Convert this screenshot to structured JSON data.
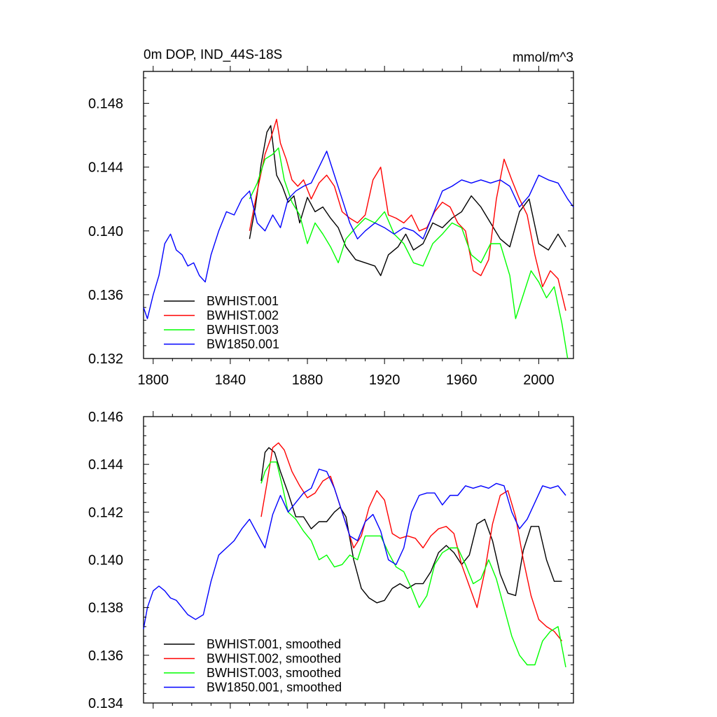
{
  "chart_data": [
    {
      "type": "line",
      "title": "0m DOP, IND_44S-18S",
      "units": "mmol/m^3",
      "xlim": [
        1795,
        2018
      ],
      "ylim": [
        0.132,
        0.15
      ],
      "xticks": [
        1800,
        1840,
        1880,
        1920,
        1960,
        2000
      ],
      "yticks": [
        0.132,
        0.136,
        0.14,
        0.144,
        0.148
      ],
      "ytick_labels": [
        "0.132",
        "0.136",
        "0.140",
        "0.144",
        "0.148"
      ],
      "xtick_labels": [
        "1800",
        "1840",
        "1880",
        "1920",
        "1960",
        "2000"
      ],
      "legend_position": "bottom-left",
      "series": [
        {
          "name": "BWHIST.001",
          "color": "#000000",
          "x": [
            1850,
            1853,
            1856,
            1859,
            1861,
            1864,
            1867,
            1870,
            1873,
            1876,
            1880,
            1884,
            1888,
            1892,
            1896,
            1900,
            1905,
            1910,
            1915,
            1918,
            1922,
            1927,
            1931,
            1935,
            1940,
            1945,
            1950,
            1955,
            1960,
            1965,
            1970,
            1975,
            1980,
            1985,
            1990,
            1995,
            2000,
            2005,
            2010,
            2014
          ],
          "y": [
            0.1395,
            0.1415,
            0.1442,
            0.1462,
            0.1466,
            0.1435,
            0.1428,
            0.1418,
            0.1422,
            0.1405,
            0.1421,
            0.1412,
            0.1415,
            0.1408,
            0.1402,
            0.139,
            0.1382,
            0.138,
            0.1378,
            0.1372,
            0.1385,
            0.139,
            0.1398,
            0.1388,
            0.1392,
            0.1405,
            0.1402,
            0.1408,
            0.1412,
            0.1422,
            0.1415,
            0.1405,
            0.1395,
            0.139,
            0.1412,
            0.142,
            0.1392,
            0.1388,
            0.1398,
            0.139
          ]
        },
        {
          "name": "BWHIST.002",
          "color": "#ff0000",
          "x": [
            1850,
            1854,
            1858,
            1861,
            1864,
            1866,
            1869,
            1872,
            1875,
            1878,
            1882,
            1886,
            1890,
            1894,
            1898,
            1902,
            1906,
            1910,
            1914,
            1918,
            1922,
            1926,
            1930,
            1934,
            1938,
            1942,
            1946,
            1950,
            1954,
            1958,
            1962,
            1966,
            1970,
            1974,
            1978,
            1982,
            1986,
            1990,
            1994,
            1998,
            2002,
            2006,
            2010,
            2014
          ],
          "y": [
            0.14,
            0.1425,
            0.1448,
            0.1458,
            0.147,
            0.1455,
            0.1445,
            0.1432,
            0.1428,
            0.1432,
            0.142,
            0.143,
            0.1435,
            0.1428,
            0.1412,
            0.1408,
            0.1405,
            0.141,
            0.1432,
            0.144,
            0.141,
            0.1408,
            0.1405,
            0.141,
            0.14,
            0.1402,
            0.1412,
            0.1418,
            0.1415,
            0.1405,
            0.14,
            0.1375,
            0.1372,
            0.1382,
            0.142,
            0.1445,
            0.1432,
            0.142,
            0.141,
            0.1385,
            0.1365,
            0.1375,
            0.137,
            0.135
          ]
        },
        {
          "name": "BWHIST.003",
          "color": "#00ff00",
          "x": [
            1850,
            1854,
            1858,
            1862,
            1865,
            1868,
            1872,
            1876,
            1880,
            1884,
            1888,
            1892,
            1896,
            1900,
            1905,
            1910,
            1915,
            1920,
            1925,
            1930,
            1935,
            1940,
            1945,
            1950,
            1955,
            1960,
            1965,
            1970,
            1975,
            1980,
            1985,
            1988,
            1992,
            1996,
            2000,
            2004,
            2008,
            2012,
            2015
          ],
          "y": [
            0.142,
            0.143,
            0.1445,
            0.1448,
            0.1452,
            0.1432,
            0.1418,
            0.141,
            0.1392,
            0.1405,
            0.1398,
            0.139,
            0.138,
            0.1395,
            0.1402,
            0.1408,
            0.1405,
            0.1412,
            0.1398,
            0.1392,
            0.138,
            0.1378,
            0.1392,
            0.1398,
            0.1405,
            0.1402,
            0.1385,
            0.138,
            0.1392,
            0.1392,
            0.1372,
            0.1345,
            0.136,
            0.1375,
            0.1368,
            0.1358,
            0.1365,
            0.1342,
            0.132
          ]
        },
        {
          "name": "BW1850.001",
          "color": "#0000ff",
          "x": [
            1795,
            1797,
            1800,
            1803,
            1806,
            1809,
            1812,
            1815,
            1818,
            1821,
            1824,
            1827,
            1830,
            1834,
            1838,
            1842,
            1846,
            1850,
            1854,
            1858,
            1862,
            1866,
            1870,
            1874,
            1878,
            1882,
            1886,
            1890,
            1894,
            1898,
            1902,
            1906,
            1910,
            1915,
            1920,
            1925,
            1930,
            1935,
            1940,
            1945,
            1950,
            1955,
            1960,
            1965,
            1970,
            1975,
            1980,
            1985,
            1990,
            1995,
            2000,
            2005,
            2010,
            2015,
            2018
          ],
          "y": [
            0.1352,
            0.1345,
            0.136,
            0.1372,
            0.1392,
            0.1398,
            0.1388,
            0.1385,
            0.1378,
            0.138,
            0.1372,
            0.1368,
            0.1385,
            0.14,
            0.1412,
            0.141,
            0.142,
            0.1425,
            0.1405,
            0.14,
            0.141,
            0.1402,
            0.142,
            0.1425,
            0.1428,
            0.143,
            0.144,
            0.145,
            0.1435,
            0.142,
            0.1405,
            0.1395,
            0.14,
            0.1405,
            0.1402,
            0.1398,
            0.1402,
            0.14,
            0.1395,
            0.141,
            0.1425,
            0.1428,
            0.1432,
            0.143,
            0.1432,
            0.143,
            0.1432,
            0.1428,
            0.1415,
            0.1422,
            0.1435,
            0.1432,
            0.143,
            0.142,
            0.1415
          ]
        }
      ]
    },
    {
      "type": "line",
      "title": "",
      "xlim": [
        1795,
        2018
      ],
      "ylim": [
        0.134,
        0.146
      ],
      "xticks": [
        1800,
        1840,
        1880,
        1920,
        1960,
        2000
      ],
      "yticks": [
        0.134,
        0.136,
        0.138,
        0.14,
        0.142,
        0.144,
        0.146
      ],
      "ytick_labels": [
        "0.134",
        "0.136",
        "0.138",
        "0.140",
        "0.142",
        "0.144",
        "0.146"
      ],
      "legend_position": "bottom-left",
      "series": [
        {
          "name": "BWHIST.001, smoothed",
          "color": "#000000",
          "x": [
            1856,
            1858,
            1860,
            1863,
            1866,
            1870,
            1874,
            1878,
            1882,
            1886,
            1890,
            1894,
            1897,
            1900,
            1904,
            1908,
            1912,
            1916,
            1920,
            1924,
            1928,
            1932,
            1936,
            1940,
            1944,
            1948,
            1952,
            1956,
            1960,
            1964,
            1968,
            1972,
            1976,
            1980,
            1984,
            1988,
            1992,
            1996,
            2000,
            2004,
            2008,
            2012
          ],
          "y": [
            0.1433,
            0.1445,
            0.1447,
            0.1445,
            0.1437,
            0.1428,
            0.1418,
            0.1418,
            0.1413,
            0.1416,
            0.1416,
            0.142,
            0.1422,
            0.1418,
            0.14,
            0.1388,
            0.1384,
            0.1382,
            0.1383,
            0.1388,
            0.139,
            0.1388,
            0.139,
            0.139,
            0.1395,
            0.1403,
            0.1406,
            0.1403,
            0.1398,
            0.1402,
            0.1415,
            0.1417,
            0.1408,
            0.1394,
            0.1386,
            0.1385,
            0.1404,
            0.1414,
            0.1414,
            0.14,
            0.1391,
            0.1391
          ]
        },
        {
          "name": "BWHIST.002, smoothed",
          "color": "#ff0000",
          "x": [
            1856,
            1859,
            1862,
            1865,
            1868,
            1872,
            1876,
            1880,
            1884,
            1888,
            1892,
            1896,
            1900,
            1904,
            1908,
            1912,
            1916,
            1920,
            1924,
            1928,
            1932,
            1936,
            1940,
            1944,
            1948,
            1952,
            1956,
            1960,
            1964,
            1968,
            1972,
            1976,
            1980,
            1984,
            1988,
            1992,
            1996,
            2000,
            2004,
            2008,
            2012
          ],
          "y": [
            0.1418,
            0.1432,
            0.1447,
            0.1449,
            0.1446,
            0.1437,
            0.1431,
            0.1426,
            0.1428,
            0.1433,
            0.1435,
            0.1425,
            0.1415,
            0.1405,
            0.141,
            0.1422,
            0.1429,
            0.1425,
            0.1411,
            0.1409,
            0.141,
            0.1409,
            0.1405,
            0.141,
            0.1413,
            0.1414,
            0.1411,
            0.1398,
            0.1389,
            0.138,
            0.1395,
            0.1415,
            0.1427,
            0.1429,
            0.1418,
            0.14,
            0.1385,
            0.1375,
            0.1372,
            0.137,
            0.1366
          ]
        },
        {
          "name": "BWHIST.003, smoothed",
          "color": "#00ff00",
          "x": [
            1856,
            1858,
            1861,
            1864,
            1867,
            1870,
            1874,
            1878,
            1882,
            1886,
            1890,
            1894,
            1898,
            1902,
            1906,
            1910,
            1914,
            1918,
            1922,
            1926,
            1930,
            1934,
            1938,
            1942,
            1946,
            1950,
            1954,
            1958,
            1962,
            1966,
            1970,
            1974,
            1978,
            1982,
            1986,
            1990,
            1994,
            1998,
            2002,
            2006,
            2010,
            2014
          ],
          "y": [
            0.1432,
            0.1437,
            0.1441,
            0.1441,
            0.1431,
            0.142,
            0.1417,
            0.1412,
            0.1408,
            0.14,
            0.1402,
            0.1397,
            0.1398,
            0.1402,
            0.14,
            0.141,
            0.141,
            0.141,
            0.1403,
            0.1397,
            0.1395,
            0.1388,
            0.138,
            0.1385,
            0.1398,
            0.1403,
            0.1405,
            0.1405,
            0.1398,
            0.139,
            0.1392,
            0.14,
            0.1392,
            0.138,
            0.1368,
            0.136,
            0.1356,
            0.1356,
            0.1366,
            0.137,
            0.1372,
            0.1355
          ]
        },
        {
          "name": "BW1850.001, smoothed",
          "color": "#0000ff",
          "x": [
            1795,
            1797,
            1800,
            1803,
            1806,
            1809,
            1812,
            1815,
            1818,
            1822,
            1826,
            1830,
            1834,
            1838,
            1842,
            1846,
            1850,
            1854,
            1858,
            1862,
            1866,
            1870,
            1874,
            1878,
            1882,
            1886,
            1890,
            1894,
            1898,
            1902,
            1906,
            1910,
            1914,
            1918,
            1922,
            1926,
            1930,
            1934,
            1938,
            1942,
            1946,
            1950,
            1954,
            1958,
            1962,
            1966,
            1970,
            1974,
            1978,
            1982,
            1986,
            1990,
            1994,
            1998,
            2002,
            2006,
            2010,
            2014
          ],
          "y": [
            0.1371,
            0.138,
            0.1387,
            0.1389,
            0.1387,
            0.1384,
            0.1383,
            0.138,
            0.1377,
            0.1375,
            0.1377,
            0.1391,
            0.1402,
            0.1405,
            0.1408,
            0.1413,
            0.1417,
            0.1411,
            0.1405,
            0.1419,
            0.1427,
            0.142,
            0.1424,
            0.1428,
            0.143,
            0.1438,
            0.1437,
            0.143,
            0.142,
            0.141,
            0.1408,
            0.1416,
            0.1419,
            0.1412,
            0.14,
            0.1398,
            0.1405,
            0.142,
            0.1427,
            0.1428,
            0.1428,
            0.1423,
            0.1427,
            0.1427,
            0.1431,
            0.143,
            0.1431,
            0.143,
            0.1432,
            0.1431,
            0.142,
            0.1413,
            0.1417,
            0.1424,
            0.1431,
            0.143,
            0.1431,
            0.1427
          ]
        }
      ]
    }
  ]
}
